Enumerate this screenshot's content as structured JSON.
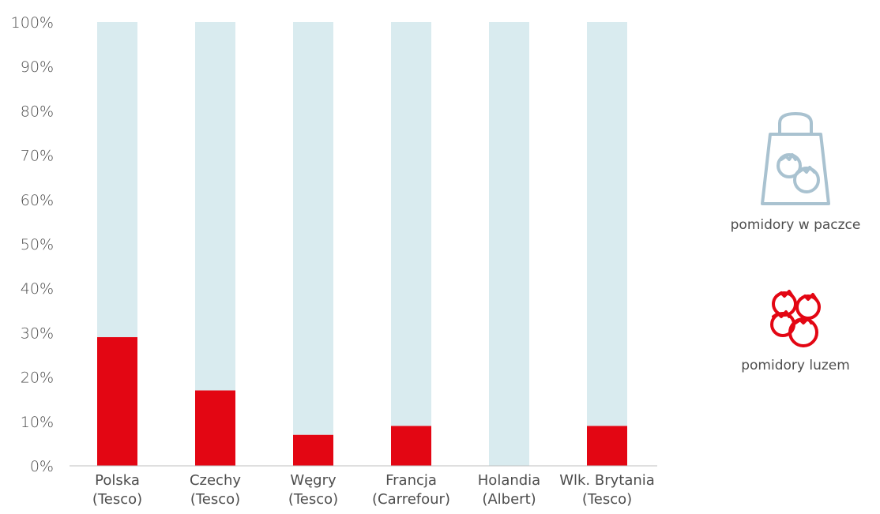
{
  "chart_data": {
    "type": "bar",
    "stacked": true,
    "categories": [
      [
        "Polska",
        "(Tesco)"
      ],
      [
        "Czechy",
        "(Tesco)"
      ],
      [
        "Węgry",
        "(Tesco)"
      ],
      [
        "Francja",
        "(Carrefour)"
      ],
      [
        "Holandia",
        "(Albert)"
      ],
      [
        "Wlk. Brytania",
        "(Tesco)"
      ]
    ],
    "series": [
      {
        "name": "pomidory luzem",
        "color": "#e30613",
        "values": [
          29,
          17,
          7,
          9,
          0,
          9
        ]
      },
      {
        "name": "pomidory w paczce",
        "color": "#d9ebef",
        "values": [
          71,
          83,
          93,
          91,
          100,
          91
        ]
      }
    ],
    "ylim": [
      0,
      100
    ],
    "yticks": [
      "0%",
      "10%",
      "20%",
      "30%",
      "40%",
      "50%",
      "60%",
      "70%",
      "80%",
      "90%",
      "100%"
    ],
    "grid": false,
    "legend_placement": "right"
  },
  "legend": {
    "packaged": {
      "label": "pomidory w paczce",
      "icon": "shopping-bag-tomatoes-icon",
      "color": "#a9c2d0"
    },
    "loose": {
      "label": "pomidory luzem",
      "icon": "tomatoes-icon",
      "color": "#e30613"
    }
  }
}
